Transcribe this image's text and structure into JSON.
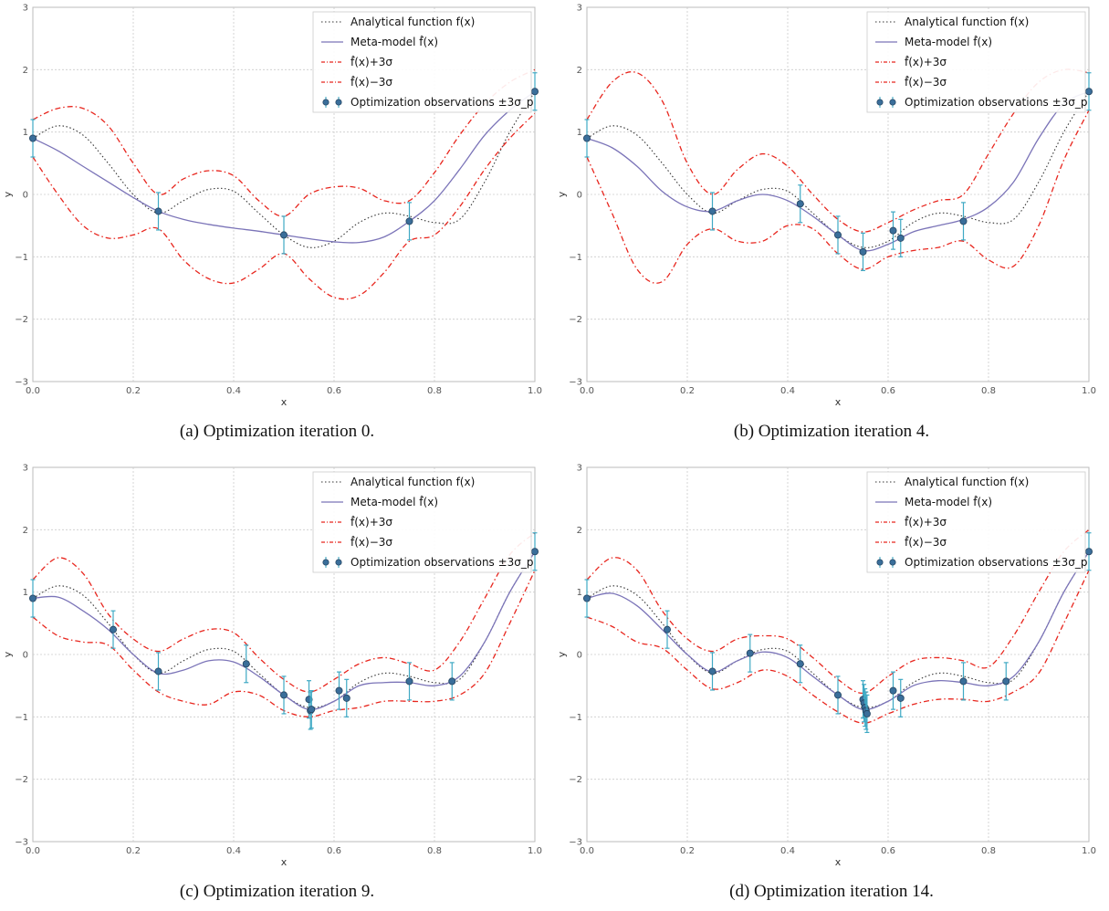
{
  "chart_data": [
    {
      "type": "line",
      "caption": "(a) Optimization iteration 0.",
      "xlabel": "x",
      "ylabel": "y",
      "xlim": [
        0.0,
        1.0
      ],
      "ylim": [
        -3,
        3
      ],
      "xticks": [
        "0.0",
        "0.2",
        "0.4",
        "0.6",
        "0.8",
        "1.0"
      ],
      "yticks": [
        "−3",
        "−2",
        "−1",
        "0",
        "1",
        "2",
        "3"
      ],
      "grid": true,
      "legend_position": "top-right",
      "legend": [
        "Analytical function f(x)",
        "Meta-model f̂(x)",
        "f̂(x)+3σ",
        "f̂(x)−3σ",
        "Optimization observations ±3σ_p"
      ],
      "series": [
        {
          "name": "Analytical function f(x)",
          "x": [
            0,
            0.05,
            0.1,
            0.15,
            0.2,
            0.25,
            0.3,
            0.35,
            0.4,
            0.45,
            0.5,
            0.55,
            0.6,
            0.65,
            0.7,
            0.75,
            0.8,
            0.85,
            0.9,
            0.95,
            1.0
          ],
          "y": [
            0.9,
            1.1,
            0.95,
            0.5,
            0.0,
            -0.3,
            -0.1,
            0.08,
            0.05,
            -0.3,
            -0.65,
            -0.85,
            -0.75,
            -0.45,
            -0.3,
            -0.35,
            -0.45,
            -0.4,
            0.2,
            1.0,
            1.65
          ]
        },
        {
          "name": "Meta-model f̂(x)",
          "x": [
            0,
            0.05,
            0.1,
            0.15,
            0.2,
            0.25,
            0.3,
            0.35,
            0.4,
            0.45,
            0.5,
            0.55,
            0.6,
            0.65,
            0.7,
            0.75,
            0.8,
            0.85,
            0.9,
            0.95,
            1.0
          ],
          "y": [
            0.9,
            0.7,
            0.45,
            0.2,
            -0.05,
            -0.27,
            -0.4,
            -0.48,
            -0.54,
            -0.59,
            -0.65,
            -0.71,
            -0.76,
            -0.77,
            -0.68,
            -0.43,
            -0.1,
            0.4,
            0.95,
            1.35,
            1.65
          ]
        },
        {
          "name": "f̂(x)+3σ",
          "x": [
            0,
            0.05,
            0.1,
            0.15,
            0.2,
            0.25,
            0.3,
            0.35,
            0.4,
            0.45,
            0.5,
            0.55,
            0.6,
            0.65,
            0.7,
            0.75,
            0.8,
            0.85,
            0.9,
            0.95,
            1.0
          ],
          "y": [
            1.2,
            1.38,
            1.38,
            1.1,
            0.5,
            0.0,
            0.25,
            0.38,
            0.3,
            -0.1,
            -0.35,
            0.0,
            0.12,
            0.1,
            -0.1,
            -0.1,
            0.35,
            0.95,
            1.45,
            1.8,
            2.0
          ]
        },
        {
          "name": "f̂(x)−3σ",
          "x": [
            0,
            0.05,
            0.1,
            0.15,
            0.2,
            0.25,
            0.3,
            0.35,
            0.4,
            0.45,
            0.5,
            0.55,
            0.6,
            0.65,
            0.7,
            0.75,
            0.8,
            0.85,
            0.9,
            0.95,
            1.0
          ],
          "y": [
            0.6,
            0.0,
            -0.5,
            -0.7,
            -0.65,
            -0.55,
            -1.05,
            -1.35,
            -1.42,
            -1.2,
            -0.95,
            -1.35,
            -1.65,
            -1.62,
            -1.25,
            -0.75,
            -0.65,
            -0.2,
            0.4,
            0.9,
            1.3
          ]
        }
      ],
      "observations": {
        "x": [
          0.0,
          0.25,
          0.5,
          0.75,
          1.0
        ],
        "y": [
          0.9,
          -0.27,
          -0.65,
          -0.43,
          1.65
        ],
        "err": [
          0.3,
          0.3,
          0.3,
          0.3,
          0.3
        ]
      }
    },
    {
      "type": "line",
      "caption": "(b) Optimization iteration 4.",
      "xlabel": "x",
      "ylabel": "y",
      "xlim": [
        0.0,
        1.0
      ],
      "ylim": [
        -3,
        3
      ],
      "xticks": [
        "0.0",
        "0.2",
        "0.4",
        "0.6",
        "0.8",
        "1.0"
      ],
      "yticks": [
        "−3",
        "−2",
        "−1",
        "0",
        "1",
        "2",
        "3"
      ],
      "grid": true,
      "legend_position": "top-right",
      "legend": [
        "Analytical function f(x)",
        "Meta-model f̂(x)",
        "f̂(x)+3σ",
        "f̂(x)−3σ",
        "Optimization observations ±3σ_p"
      ],
      "series": [
        {
          "name": "Analytical function f(x)",
          "x": [
            0,
            0.05,
            0.1,
            0.15,
            0.2,
            0.25,
            0.3,
            0.35,
            0.4,
            0.45,
            0.5,
            0.55,
            0.6,
            0.65,
            0.7,
            0.75,
            0.8,
            0.85,
            0.9,
            0.95,
            1.0
          ],
          "y": [
            0.9,
            1.1,
            0.95,
            0.5,
            0.0,
            -0.3,
            -0.1,
            0.08,
            0.05,
            -0.3,
            -0.65,
            -0.85,
            -0.75,
            -0.45,
            -0.3,
            -0.35,
            -0.45,
            -0.4,
            0.2,
            1.0,
            1.65
          ]
        },
        {
          "name": "Meta-model f̂(x)",
          "x": [
            0,
            0.05,
            0.1,
            0.15,
            0.2,
            0.25,
            0.3,
            0.35,
            0.4,
            0.45,
            0.5,
            0.55,
            0.6,
            0.65,
            0.7,
            0.75,
            0.8,
            0.85,
            0.9,
            0.95,
            1.0
          ],
          "y": [
            0.9,
            0.75,
            0.45,
            0.05,
            -0.2,
            -0.27,
            -0.1,
            0.0,
            -0.1,
            -0.35,
            -0.65,
            -0.9,
            -0.8,
            -0.6,
            -0.5,
            -0.4,
            -0.2,
            0.2,
            0.9,
            1.45,
            1.65
          ]
        },
        {
          "name": "f̂(x)+3σ",
          "x": [
            0,
            0.05,
            0.1,
            0.15,
            0.2,
            0.25,
            0.3,
            0.35,
            0.4,
            0.45,
            0.5,
            0.55,
            0.6,
            0.65,
            0.7,
            0.75,
            0.8,
            0.85,
            0.9,
            0.95,
            1.0
          ],
          "y": [
            1.2,
            1.8,
            1.95,
            1.5,
            0.5,
            0.0,
            0.4,
            0.65,
            0.45,
            0.0,
            -0.4,
            -0.6,
            -0.45,
            -0.25,
            -0.1,
            0.0,
            0.65,
            1.3,
            1.8,
            2.0,
            1.95
          ]
        },
        {
          "name": "f̂(x)−3σ",
          "x": [
            0,
            0.05,
            0.1,
            0.15,
            0.2,
            0.25,
            0.3,
            0.35,
            0.4,
            0.45,
            0.5,
            0.55,
            0.6,
            0.65,
            0.7,
            0.75,
            0.8,
            0.85,
            0.9,
            0.95,
            1.0
          ],
          "y": [
            0.6,
            -0.3,
            -1.2,
            -1.4,
            -0.8,
            -0.55,
            -0.75,
            -0.75,
            -0.5,
            -0.55,
            -0.95,
            -1.2,
            -1.0,
            -0.9,
            -0.85,
            -0.75,
            -1.05,
            -1.15,
            -0.5,
            0.55,
            1.35
          ]
        }
      ],
      "observations": {
        "x": [
          0.0,
          0.25,
          0.425,
          0.5,
          0.55,
          0.61,
          0.625,
          0.75,
          1.0
        ],
        "y": [
          0.9,
          -0.27,
          -0.15,
          -0.65,
          -0.92,
          -0.58,
          -0.7,
          -0.43,
          1.65
        ],
        "err": [
          0.3,
          0.3,
          0.3,
          0.3,
          0.3,
          0.3,
          0.3,
          0.3,
          0.3
        ]
      }
    },
    {
      "type": "line",
      "caption": "(c) Optimization iteration 9.",
      "xlabel": "x",
      "ylabel": "y",
      "xlim": [
        0.0,
        1.0
      ],
      "ylim": [
        -3,
        3
      ],
      "xticks": [
        "0.0",
        "0.2",
        "0.4",
        "0.6",
        "0.8",
        "1.0"
      ],
      "yticks": [
        "−3",
        "−2",
        "−1",
        "0",
        "1",
        "2",
        "3"
      ],
      "grid": true,
      "legend_position": "top-right",
      "legend": [
        "Analytical function f(x)",
        "Meta-model f̂(x)",
        "f̂(x)+3σ",
        "f̂(x)−3σ",
        "Optimization observations ±3σ_p"
      ],
      "series": [
        {
          "name": "Analytical function f(x)",
          "x": [
            0,
            0.05,
            0.1,
            0.15,
            0.2,
            0.25,
            0.3,
            0.35,
            0.4,
            0.45,
            0.5,
            0.55,
            0.6,
            0.65,
            0.7,
            0.75,
            0.8,
            0.85,
            0.9,
            0.95,
            1.0
          ],
          "y": [
            0.9,
            1.1,
            0.95,
            0.5,
            0.0,
            -0.3,
            -0.1,
            0.08,
            0.05,
            -0.3,
            -0.65,
            -0.85,
            -0.75,
            -0.45,
            -0.3,
            -0.35,
            -0.45,
            -0.4,
            0.2,
            1.0,
            1.65
          ]
        },
        {
          "name": "Meta-model f̂(x)",
          "x": [
            0,
            0.05,
            0.1,
            0.15,
            0.2,
            0.25,
            0.3,
            0.35,
            0.4,
            0.45,
            0.5,
            0.55,
            0.6,
            0.65,
            0.7,
            0.75,
            0.8,
            0.85,
            0.9,
            0.95,
            1.0
          ],
          "y": [
            0.9,
            0.92,
            0.7,
            0.4,
            0.0,
            -0.3,
            -0.25,
            -0.1,
            -0.12,
            -0.35,
            -0.65,
            -0.88,
            -0.75,
            -0.5,
            -0.45,
            -0.45,
            -0.5,
            -0.35,
            0.2,
            1.0,
            1.65
          ]
        },
        {
          "name": "f̂(x)+3σ",
          "x": [
            0,
            0.05,
            0.1,
            0.15,
            0.2,
            0.25,
            0.3,
            0.35,
            0.4,
            0.45,
            0.5,
            0.55,
            0.6,
            0.65,
            0.7,
            0.75,
            0.8,
            0.85,
            0.9,
            0.95,
            1.0
          ],
          "y": [
            1.2,
            1.55,
            1.3,
            0.65,
            0.25,
            0.05,
            0.25,
            0.4,
            0.35,
            -0.05,
            -0.4,
            -0.6,
            -0.4,
            -0.15,
            -0.05,
            -0.15,
            -0.25,
            0.2,
            0.9,
            1.6,
            1.95
          ]
        },
        {
          "name": "f̂(x)−3σ",
          "x": [
            0,
            0.05,
            0.1,
            0.15,
            0.2,
            0.25,
            0.3,
            0.35,
            0.4,
            0.45,
            0.5,
            0.55,
            0.6,
            0.65,
            0.7,
            0.75,
            0.8,
            0.85,
            0.9,
            0.95,
            1.0
          ],
          "y": [
            0.6,
            0.3,
            0.2,
            0.15,
            -0.25,
            -0.6,
            -0.75,
            -0.8,
            -0.6,
            -0.65,
            -0.9,
            -1.0,
            -0.9,
            -0.85,
            -0.75,
            -0.75,
            -0.75,
            -0.65,
            -0.3,
            0.5,
            1.35
          ]
        }
      ],
      "observations": {
        "x": [
          0.0,
          0.16,
          0.25,
          0.425,
          0.5,
          0.55,
          0.553,
          0.555,
          0.61,
          0.625,
          0.75,
          0.835,
          1.0
        ],
        "y": [
          0.9,
          0.4,
          -0.27,
          -0.15,
          -0.65,
          -0.72,
          -0.9,
          -0.88,
          -0.58,
          -0.7,
          -0.43,
          -0.43,
          1.65
        ],
        "err": [
          0.3,
          0.3,
          0.3,
          0.3,
          0.3,
          0.3,
          0.3,
          0.3,
          0.3,
          0.3,
          0.3,
          0.3,
          0.3
        ]
      }
    },
    {
      "type": "line",
      "caption": "(d) Optimization iteration 14.",
      "xlabel": "x",
      "ylabel": "y",
      "xlim": [
        0.0,
        1.0
      ],
      "ylim": [
        -3,
        3
      ],
      "xticks": [
        "0.0",
        "0.2",
        "0.4",
        "0.6",
        "0.8",
        "1.0"
      ],
      "yticks": [
        "−3",
        "−2",
        "−1",
        "0",
        "1",
        "2",
        "3"
      ],
      "grid": true,
      "legend_position": "top-right",
      "legend": [
        "Analytical function f(x)",
        "Meta-model f̂(x)",
        "f̂(x)+3σ",
        "f̂(x)−3σ",
        "Optimization observations ±3σ_p"
      ],
      "series": [
        {
          "name": "Analytical function f(x)",
          "x": [
            0,
            0.05,
            0.1,
            0.15,
            0.2,
            0.25,
            0.3,
            0.35,
            0.4,
            0.45,
            0.5,
            0.55,
            0.6,
            0.65,
            0.7,
            0.75,
            0.8,
            0.85,
            0.9,
            0.95,
            1.0
          ],
          "y": [
            0.9,
            1.1,
            0.95,
            0.5,
            0.0,
            -0.3,
            -0.1,
            0.08,
            0.05,
            -0.3,
            -0.65,
            -0.85,
            -0.75,
            -0.45,
            -0.3,
            -0.35,
            -0.45,
            -0.4,
            0.2,
            1.0,
            1.65
          ]
        },
        {
          "name": "Meta-model f̂(x)",
          "x": [
            0,
            0.05,
            0.1,
            0.15,
            0.2,
            0.25,
            0.3,
            0.35,
            0.4,
            0.45,
            0.5,
            0.55,
            0.6,
            0.65,
            0.7,
            0.75,
            0.8,
            0.85,
            0.9,
            0.95,
            1.0
          ],
          "y": [
            0.9,
            0.98,
            0.78,
            0.4,
            0.0,
            -0.28,
            -0.1,
            0.04,
            -0.05,
            -0.35,
            -0.65,
            -0.88,
            -0.75,
            -0.5,
            -0.42,
            -0.45,
            -0.5,
            -0.35,
            0.2,
            1.0,
            1.65
          ]
        },
        {
          "name": "f̂(x)+3σ",
          "x": [
            0,
            0.05,
            0.1,
            0.15,
            0.2,
            0.25,
            0.3,
            0.35,
            0.4,
            0.45,
            0.5,
            0.55,
            0.6,
            0.65,
            0.7,
            0.75,
            0.8,
            0.85,
            0.9,
            0.95,
            1.0
          ],
          "y": [
            1.2,
            1.55,
            1.35,
            0.7,
            0.25,
            0.05,
            0.25,
            0.3,
            0.25,
            -0.05,
            -0.4,
            -0.62,
            -0.35,
            -0.1,
            -0.05,
            -0.1,
            -0.2,
            0.3,
            1.0,
            1.65,
            2.0
          ]
        },
        {
          "name": "f̂(x)−3σ",
          "x": [
            0,
            0.05,
            0.1,
            0.15,
            0.2,
            0.25,
            0.3,
            0.35,
            0.4,
            0.45,
            0.5,
            0.55,
            0.6,
            0.65,
            0.7,
            0.75,
            0.8,
            0.85,
            0.9,
            0.95,
            1.0
          ],
          "y": [
            0.6,
            0.45,
            0.2,
            0.1,
            -0.25,
            -0.55,
            -0.45,
            -0.25,
            -0.35,
            -0.65,
            -0.92,
            -1.1,
            -0.95,
            -0.8,
            -0.72,
            -0.72,
            -0.75,
            -0.6,
            -0.3,
            0.5,
            1.35
          ]
        }
      ],
      "observations": {
        "x": [
          0.0,
          0.16,
          0.25,
          0.325,
          0.425,
          0.5,
          0.55,
          0.552,
          0.554,
          0.556,
          0.558,
          0.61,
          0.625,
          0.75,
          0.835,
          1.0
        ],
        "y": [
          0.9,
          0.4,
          -0.27,
          0.02,
          -0.15,
          -0.65,
          -0.72,
          -0.78,
          -0.85,
          -0.9,
          -0.95,
          -0.58,
          -0.7,
          -0.43,
          -0.43,
          1.65
        ],
        "err": [
          0.3,
          0.3,
          0.3,
          0.3,
          0.3,
          0.3,
          0.3,
          0.3,
          0.3,
          0.3,
          0.3,
          0.3,
          0.3,
          0.3,
          0.3,
          0.3
        ]
      }
    }
  ],
  "colors": {
    "analytical": "#333333",
    "metamodel": "#7b74b8",
    "band": "#e8261e",
    "obs_face": "#3a6e9a",
    "obs_err": "#3fa9c4",
    "grid": "#cccccc"
  }
}
